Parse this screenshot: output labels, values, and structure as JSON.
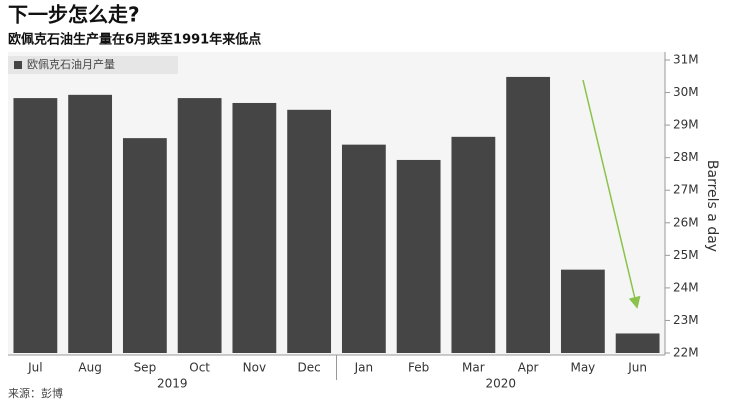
{
  "chart_data": {
    "type": "bar",
    "title": "下一步怎么走?",
    "subtitle": "欧佩克石油生产量在6月跌至1991年来低点",
    "legend_label": "欧佩克石油月产量",
    "y_label": "Barrels a day",
    "source": "来源：彭博",
    "year_labels": [
      "2019",
      "2020"
    ],
    "categories": [
      "Jul",
      "Aug",
      "Sep",
      "Oct",
      "Nov",
      "Dec",
      "Jan",
      "Feb",
      "Mar",
      "Apr",
      "May",
      "Jun"
    ],
    "values": [
      29.83,
      29.93,
      28.6,
      29.83,
      29.68,
      29.47,
      28.4,
      27.93,
      28.64,
      30.48,
      24.56,
      22.6
    ],
    "color": "#454545",
    "ylim": [
      22,
      31
    ],
    "yticks": [
      {
        "value": 22,
        "label": "22M"
      },
      {
        "value": 23,
        "label": "23M"
      },
      {
        "value": 24,
        "label": "24M"
      },
      {
        "value": 25,
        "label": "25M"
      },
      {
        "value": 26,
        "label": "26M"
      },
      {
        "value": 27,
        "label": "27M"
      },
      {
        "value": 28,
        "label": "28M"
      },
      {
        "value": 29,
        "label": "29M"
      },
      {
        "value": 30,
        "label": "30M"
      },
      {
        "value": 31,
        "label": "31M"
      }
    ]
  }
}
